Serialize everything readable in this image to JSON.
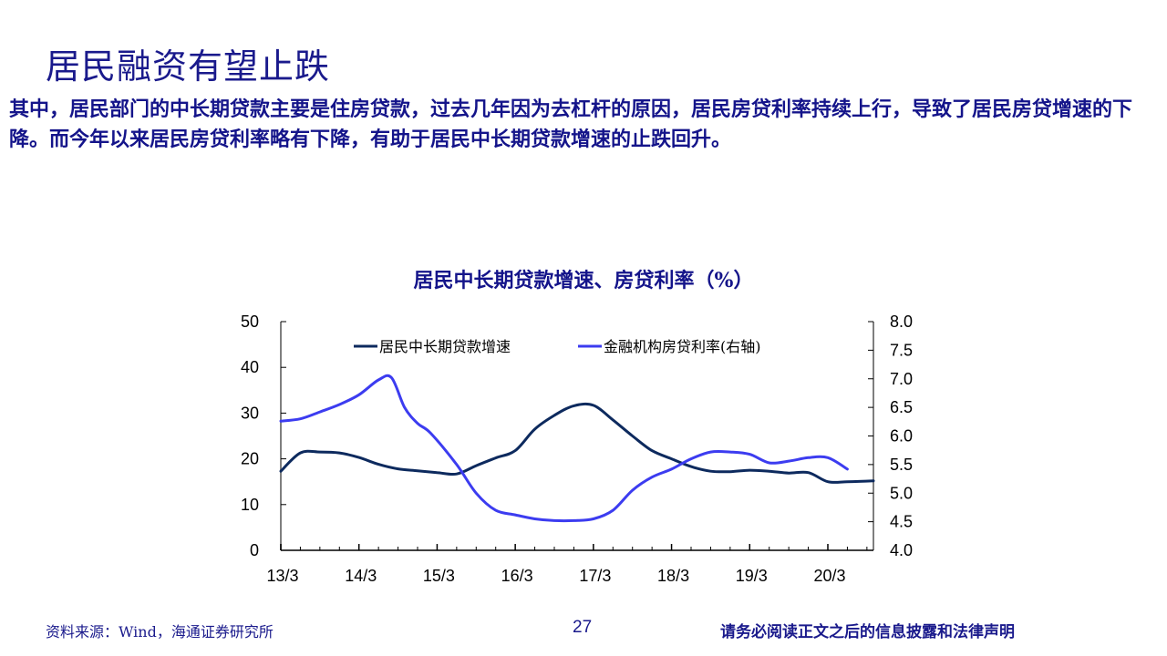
{
  "slide": {
    "title": "居民融资有望止跌",
    "body": "其中，居民部门的中长期贷款主要是住房贷款，过去几年因为去杠杆的原因，居民房贷利率持续上行，导致了居民房贷增速的下降。而今年以来居民房贷利率略有下降，有助于居民中长期贷款增速的止跌回升。",
    "page_number": "27"
  },
  "footer": {
    "source": "资料来源：Wind，海通证券研究所",
    "disclaimer": "请务必阅读正文之后的信息披露和法律声明"
  },
  "colors": {
    "text_navy": "#14148a",
    "series_dark": "#0d2a5e",
    "series_blue": "#3c3cf0",
    "axis": "#7f7f7f"
  },
  "chart_data": {
    "type": "line",
    "title": "居民中长期贷款增速、房贷利率（%）",
    "xlabel": "",
    "ylabel": "",
    "ylabel_right": "",
    "x_tick_labels": [
      "13/3",
      "14/3",
      "15/3",
      "16/3",
      "17/3",
      "18/3",
      "19/3",
      "20/3"
    ],
    "x_range_months": [
      0,
      91
    ],
    "x_unit": "months since 2013/3",
    "ylim": [
      0,
      50
    ],
    "y_ticks": [
      "0",
      "10",
      "20",
      "30",
      "40",
      "50"
    ],
    "ylim_right": [
      4.0,
      8.0
    ],
    "y_ticks_right": [
      "4.0",
      "4.5",
      "5.0",
      "5.5",
      "6.0",
      "6.5",
      "7.0",
      "7.5",
      "8.0"
    ],
    "grid": false,
    "legend_position": "top-inside",
    "series": [
      {
        "name": "居民中长期贷款增速",
        "axis": "left",
        "color": "#0d2a5e",
        "x": [
          0,
          3,
          6,
          9,
          12,
          15,
          18,
          21,
          24,
          27,
          30,
          33,
          36,
          39,
          42,
          45,
          48,
          51,
          54,
          57,
          60,
          63,
          66,
          69,
          72,
          75,
          78,
          81,
          84,
          87,
          91
        ],
        "values": [
          17.3,
          21.3,
          21.5,
          21.3,
          20.3,
          18.8,
          17.8,
          17.4,
          17.0,
          16.7,
          18.5,
          20.2,
          21.8,
          26.5,
          29.5,
          31.6,
          31.7,
          28.5,
          25.0,
          21.8,
          20.0,
          18.3,
          17.3,
          17.2,
          17.5,
          17.3,
          16.9,
          17.0,
          15.0,
          15.0,
          15.2
        ]
      },
      {
        "name": "金融机构房贷利率(右轴)",
        "axis": "right",
        "color": "#3c3cf0",
        "x": [
          0,
          3,
          6,
          9,
          12,
          15,
          17,
          19,
          21,
          23,
          27,
          30,
          33,
          36,
          39,
          42,
          45,
          48,
          51,
          54,
          57,
          60,
          63,
          66,
          69,
          72,
          75,
          78,
          81,
          84,
          87
        ],
        "values": [
          6.26,
          6.3,
          6.42,
          6.55,
          6.72,
          6.98,
          7.02,
          6.5,
          6.22,
          6.05,
          5.5,
          5.0,
          4.7,
          4.62,
          4.55,
          4.52,
          4.52,
          4.55,
          4.7,
          5.05,
          5.28,
          5.42,
          5.6,
          5.72,
          5.72,
          5.68,
          5.53,
          5.56,
          5.62,
          5.62,
          5.42
        ]
      }
    ]
  }
}
